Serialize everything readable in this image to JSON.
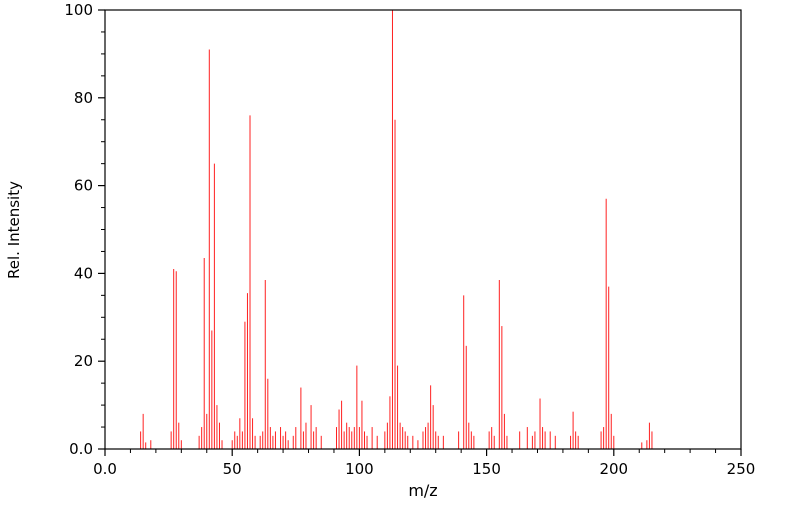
{
  "chart_data": {
    "type": "bar",
    "style": "stick-spectrum",
    "title": "",
    "xlabel": "m/z",
    "ylabel": "Rel. Intensity",
    "xlim": [
      0,
      250
    ],
    "ylim": [
      0,
      100
    ],
    "grid": false,
    "legend": "none",
    "line_color": "#ff2020",
    "axis_color": "#000000",
    "background_color": "#ffffff",
    "x_ticks": [
      {
        "value": 0,
        "label": "0.0"
      },
      {
        "value": 50,
        "label": "50"
      },
      {
        "value": 100,
        "label": "100"
      },
      {
        "value": 150,
        "label": "150"
      },
      {
        "value": 200,
        "label": "200"
      },
      {
        "value": 250,
        "label": "250"
      }
    ],
    "y_ticks": [
      {
        "value": 0,
        "label": "0.0"
      },
      {
        "value": 20,
        "label": "20"
      },
      {
        "value": 40,
        "label": "40"
      },
      {
        "value": 60,
        "label": "60"
      },
      {
        "value": 80,
        "label": "80"
      },
      {
        "value": 100,
        "label": "100"
      }
    ],
    "x_minor_step": 10,
    "x_major_step": 50,
    "y_minor_step": 5,
    "y_major_step": 20,
    "peaks": [
      [
        14,
        4
      ],
      [
        15,
        8
      ],
      [
        16,
        1.5
      ],
      [
        18,
        2
      ],
      [
        26,
        4
      ],
      [
        27,
        41
      ],
      [
        28,
        40.5
      ],
      [
        29,
        6
      ],
      [
        30,
        2
      ],
      [
        37,
        3
      ],
      [
        38,
        5
      ],
      [
        39,
        43.5
      ],
      [
        40,
        8
      ],
      [
        41,
        91
      ],
      [
        42,
        27
      ],
      [
        43,
        65
      ],
      [
        44,
        10
      ],
      [
        45,
        6
      ],
      [
        46,
        2
      ],
      [
        50,
        2
      ],
      [
        51,
        4
      ],
      [
        52,
        3
      ],
      [
        53,
        7
      ],
      [
        54,
        4
      ],
      [
        55,
        29
      ],
      [
        56,
        35.5
      ],
      [
        57,
        76
      ],
      [
        58,
        7
      ],
      [
        59,
        3
      ],
      [
        61,
        3
      ],
      [
        62,
        4
      ],
      [
        63,
        38.5
      ],
      [
        64,
        16
      ],
      [
        65,
        5
      ],
      [
        66,
        3
      ],
      [
        67,
        4
      ],
      [
        69,
        5
      ],
      [
        70,
        3
      ],
      [
        71,
        4
      ],
      [
        72,
        2
      ],
      [
        74,
        3
      ],
      [
        75,
        5
      ],
      [
        77,
        14
      ],
      [
        78,
        4
      ],
      [
        79,
        6
      ],
      [
        81,
        10
      ],
      [
        82,
        4
      ],
      [
        83,
        5
      ],
      [
        85,
        3
      ],
      [
        91,
        5
      ],
      [
        92,
        9
      ],
      [
        93,
        11
      ],
      [
        94,
        4
      ],
      [
        95,
        6
      ],
      [
        96,
        5
      ],
      [
        97,
        4
      ],
      [
        98,
        5
      ],
      [
        99,
        19
      ],
      [
        100,
        5
      ],
      [
        101,
        11
      ],
      [
        102,
        4
      ],
      [
        103,
        3
      ],
      [
        105,
        5
      ],
      [
        107,
        3
      ],
      [
        110,
        4
      ],
      [
        111,
        6
      ],
      [
        112,
        12
      ],
      [
        113,
        100
      ],
      [
        114,
        75
      ],
      [
        115,
        19
      ],
      [
        116,
        6
      ],
      [
        117,
        5
      ],
      [
        118,
        4
      ],
      [
        119,
        3
      ],
      [
        121,
        3
      ],
      [
        123,
        2
      ],
      [
        125,
        4
      ],
      [
        126,
        5
      ],
      [
        127,
        6
      ],
      [
        128,
        14.5
      ],
      [
        129,
        10
      ],
      [
        130,
        4
      ],
      [
        131,
        3
      ],
      [
        133,
        3
      ],
      [
        139,
        4
      ],
      [
        141,
        35
      ],
      [
        142,
        23.5
      ],
      [
        143,
        6
      ],
      [
        144,
        4
      ],
      [
        145,
        3
      ],
      [
        151,
        4
      ],
      [
        152,
        5
      ],
      [
        153,
        3
      ],
      [
        155,
        38.5
      ],
      [
        156,
        28
      ],
      [
        157,
        8
      ],
      [
        158,
        3
      ],
      [
        163,
        4
      ],
      [
        166,
        5
      ],
      [
        168,
        3
      ],
      [
        169,
        4
      ],
      [
        171,
        11.5
      ],
      [
        172,
        5
      ],
      [
        173,
        4
      ],
      [
        175,
        4
      ],
      [
        177,
        3
      ],
      [
        183,
        3
      ],
      [
        184,
        8.5
      ],
      [
        185,
        4
      ],
      [
        186,
        3
      ],
      [
        195,
        4
      ],
      [
        196,
        5
      ],
      [
        197,
        57
      ],
      [
        198,
        37
      ],
      [
        199,
        8
      ],
      [
        200,
        3
      ],
      [
        211,
        1.5
      ],
      [
        213,
        2
      ],
      [
        214,
        6
      ],
      [
        215,
        4
      ]
    ]
  }
}
